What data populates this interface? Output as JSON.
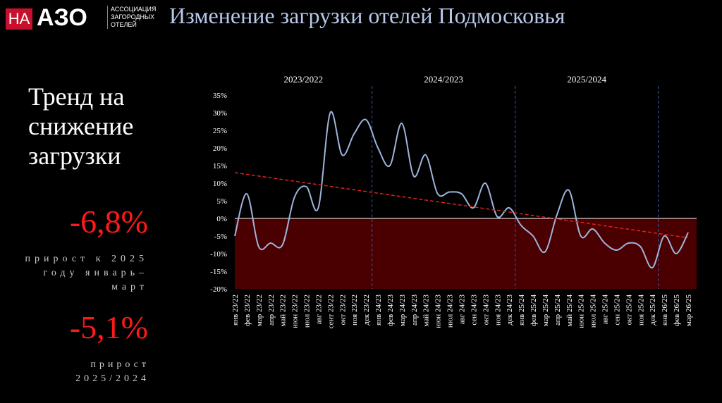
{
  "logo": {
    "mark": "НА",
    "name": "АЗО",
    "subtitle": "АССОЦИАЦИЯ ЗАГОРОДНЫХ ОТЕЛЕЙ"
  },
  "side": {
    "headline": "Тренд на снижение загрузки",
    "stat1": "-6,8%",
    "stat1_note": "прирост к 2025 году январь–март",
    "stat2": "-5,1%",
    "stat2_note": "прирост 2025/2024"
  },
  "chart_data": {
    "type": "line",
    "title": "Изменение загрузки отелей Подмосковья",
    "periods": [
      "2023/2022",
      "2024/2023",
      "2025/2024"
    ],
    "categories": [
      "янв 23/22",
      "фев 23/22",
      "мар 23/22",
      "апр 23/22",
      "май 23/22",
      "июн 23/22",
      "июл 23/22",
      "авг 23/22",
      "сент 23/22",
      "окт 23/22",
      "ноя 23/22",
      "дек 23/22",
      "янв 24/23",
      "фев 24/23",
      "мар 24/23",
      "апр 24/23",
      "май 24/23",
      "июн 24/23",
      "июл 24/23",
      "авг 24/23",
      "сен 24/23",
      "окт 24/23",
      "ноя 24/23",
      "дек 24/23",
      "янв 25/24",
      "фев 25/24",
      "мар 25/24",
      "апр 25/24",
      "май 25/24",
      "июн 25/24",
      "июл 25/24",
      "авг 25/24",
      "сен 25/24",
      "окт 25/24",
      "ноя 25/24",
      "дек 25/24",
      "янв 26/25",
      "фев 26/25",
      "мар 26/25"
    ],
    "series": [
      {
        "color": "#9fb3dc",
        "values": [
          -5,
          7,
          -8,
          -7,
          -7.5,
          6,
          9,
          3,
          30,
          18,
          24,
          28,
          20,
          15,
          27,
          12,
          18,
          7,
          7.5,
          7,
          3,
          10,
          0.5,
          3,
          -2,
          -5,
          -9.5,
          1,
          8,
          -5,
          -3,
          -7,
          -9,
          -7,
          -8,
          -14,
          -5,
          -10,
          -4
        ]
      }
    ],
    "trend": {
      "color": "#e0201c",
      "values": [
        13,
        -5.5
      ]
    },
    "ylim": [
      -20,
      35
    ],
    "yticks": [
      {
        "value": -20,
        "label": "-20%"
      },
      {
        "value": -15,
        "label": "-15%"
      },
      {
        "value": -10,
        "label": "-10%"
      },
      {
        "value": -5,
        "label": "-5%"
      },
      {
        "value": 0,
        "label": "0%"
      },
      {
        "value": 5,
        "label": "5%"
      },
      {
        "value": 10,
        "label": "10%"
      },
      {
        "value": 15,
        "label": "15%"
      },
      {
        "value": 20,
        "label": "20%"
      },
      {
        "value": 25,
        "label": "25%"
      },
      {
        "value": 30,
        "label": "30%"
      },
      {
        "value": 35,
        "label": "35%"
      }
    ]
  }
}
